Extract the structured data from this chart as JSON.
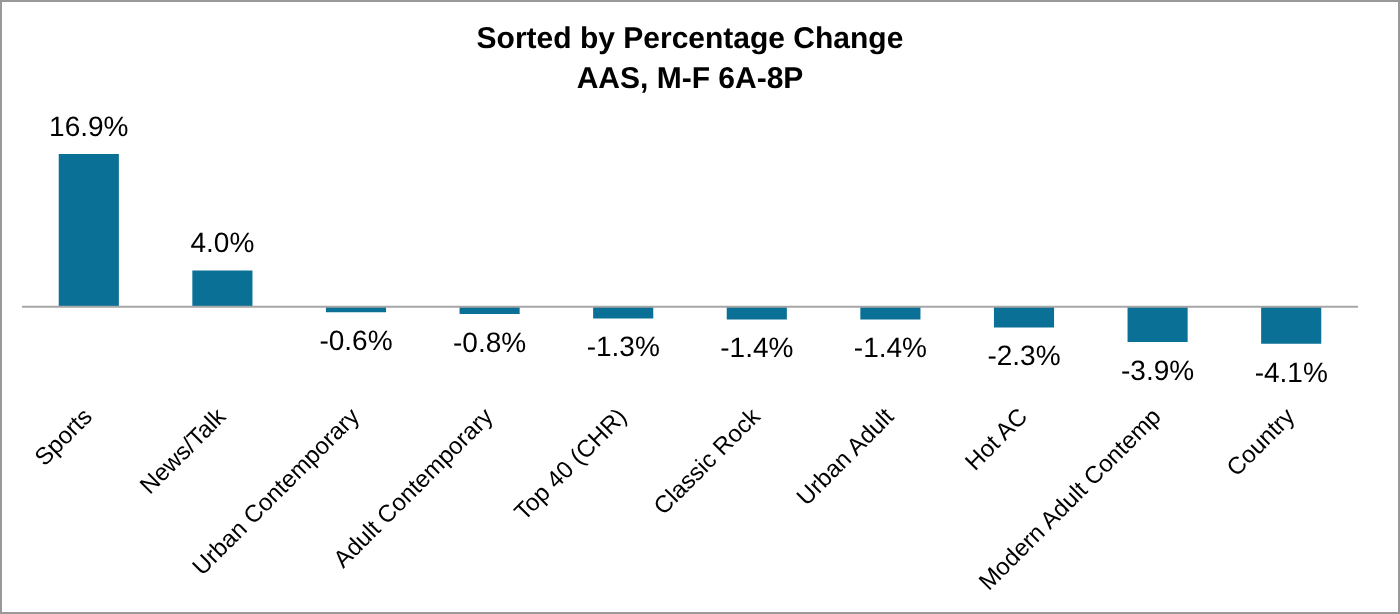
{
  "chart_data": {
    "type": "bar",
    "title": "Sorted by Percentage Change",
    "subtitle": "AAS, M-F 6A-8P",
    "categories": [
      "Sports",
      "News/Talk",
      "Urban Contemporary",
      "Adult Contemporary",
      "Top 40 (CHR)",
      "Classic Rock",
      "Urban Adult",
      "Hot AC",
      "Modern Adult Contemp",
      "Country"
    ],
    "values": [
      16.9,
      4.0,
      -0.6,
      -0.8,
      -1.3,
      -1.4,
      -1.4,
      -2.3,
      -3.9,
      -4.1
    ],
    "value_labels": [
      "16.9%",
      "4.0%",
      "-0.6%",
      "-0.8%",
      "-1.3%",
      "-1.4%",
      "-1.4%",
      "-2.3%",
      "-3.9%",
      "-4.1%"
    ],
    "color": "#0a7096",
    "grid": false,
    "legend": false
  }
}
